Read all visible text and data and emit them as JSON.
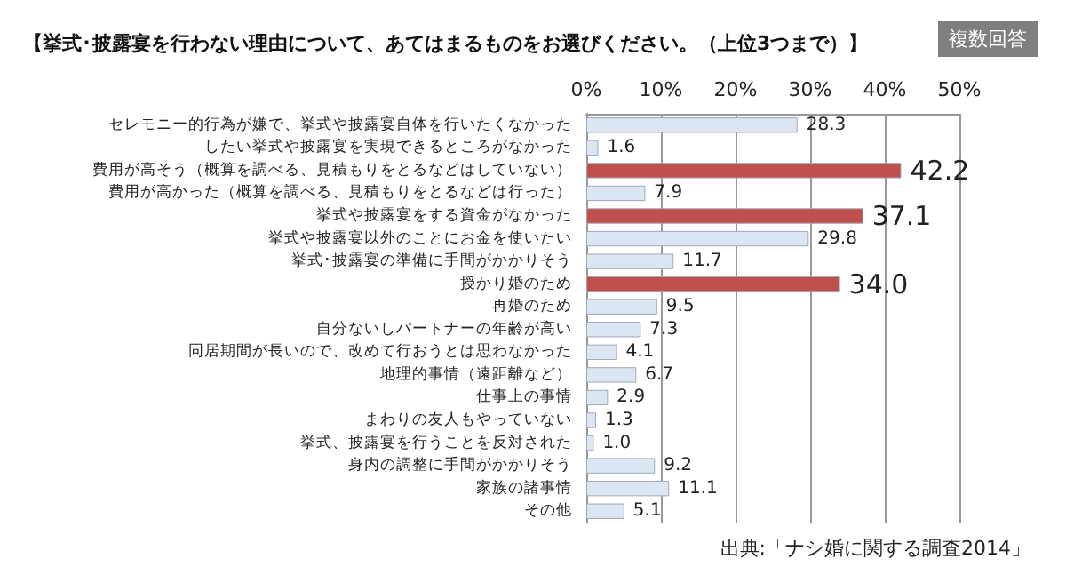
{
  "chart_data": {
    "type": "bar",
    "orientation": "horizontal",
    "title": "【挙式･披露宴を行わない理由について、あてはまるものをお選びください。（上位3つまで）】",
    "annotations": [
      "複数回答",
      "出典:「ナシ婚に関する調査2014」"
    ],
    "categories": [
      "セレモニー的行為が嫌で、挙式や披露宴自体を行いたくなかった",
      "したい挙式や披露宴を実現できるところがなかった",
      "費用が高そう（概算を調べる、見積もりをとるなどはしていない）",
      "費用が高かった（概算を調べる、見積もりをとるなどは行った）",
      "挙式や披露宴をする資金がなかった",
      "挙式や披露宴以外のことにお金を使いたい",
      "挙式･披露宴の準備に手間がかかりそう",
      "授かり婚のため",
      "再婚のため",
      "自分ないしパートナーの年齢が高い",
      "同居期間が長いので、改めて行おうとは思わなかった",
      "地理的事情（遠距離など）",
      "仕事上の事情",
      "まわりの友人もやっていない",
      "挙式、披露宴を行うことを反対された",
      "身内の調整に手間がかかりそう",
      "家族の諸事情",
      "その他"
    ],
    "values": [
      28.3,
      1.6,
      42.2,
      7.9,
      37.1,
      29.8,
      11.7,
      34.0,
      9.5,
      7.3,
      4.1,
      6.7,
      2.9,
      1.3,
      1.0,
      9.2,
      11.1,
      5.1
    ],
    "value_labels": [
      "28.3",
      "1.6",
      "42.2",
      "7.9",
      "37.1",
      "29.8",
      "11.7",
      "34.0",
      "9.5",
      "7.3",
      "4.1",
      "6.7",
      "2.9",
      "1.3",
      "1.0",
      "9.2",
      "11.1",
      "5.1"
    ],
    "colors": [
      "#dce6f2",
      "#dce6f2",
      "#c0504d",
      "#dce6f2",
      "#c0504d",
      "#dce6f2",
      "#dce6f2",
      "#c0504d",
      "#dce6f2",
      "#dce6f2",
      "#dce6f2",
      "#dce6f2",
      "#dce6f2",
      "#dce6f2",
      "#dce6f2",
      "#dce6f2",
      "#dce6f2",
      "#dce6f2"
    ],
    "xlim": [
      0,
      50
    ],
    "xticks": [
      {
        "value": 0,
        "label": "0%"
      },
      {
        "value": 10,
        "label": "10%"
      },
      {
        "value": 20,
        "label": "20%"
      },
      {
        "value": 30,
        "label": "30%"
      },
      {
        "value": 40,
        "label": "40%"
      },
      {
        "value": 50,
        "label": "50%"
      }
    ],
    "grid": "x"
  }
}
